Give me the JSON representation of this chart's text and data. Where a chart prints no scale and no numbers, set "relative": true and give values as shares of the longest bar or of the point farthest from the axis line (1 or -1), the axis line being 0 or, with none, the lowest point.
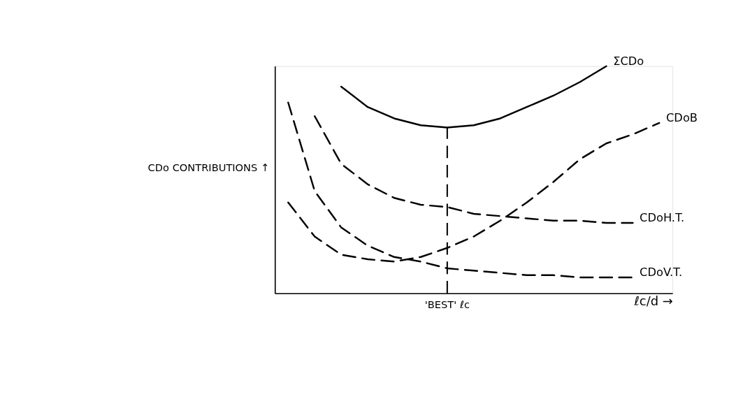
{
  "chart_data": {
    "type": "line",
    "relative": true,
    "xlabel": "ℓc/d →",
    "ylabel": "CDo CONTRIBUTIONS ↑",
    "categories": [
      null,
      null,
      null,
      null,
      null,
      null,
      null,
      null,
      null,
      null,
      null,
      null,
      null,
      null,
      null
    ],
    "series": [
      {
        "name": "ΣCDo",
        "color": "#000000",
        "line_style": "solid",
        "values": [
          null,
          null,
          0.91,
          0.82,
          0.77,
          0.74,
          0.73,
          0.74,
          0.77,
          0.82,
          0.87,
          0.93,
          1.0,
          null,
          null
        ]
      },
      {
        "name": "CDoB",
        "color": "#000000",
        "line_style": "dashed",
        "values": [
          0.4,
          0.25,
          0.17,
          0.15,
          0.14,
          0.16,
          0.2,
          0.25,
          0.32,
          0.4,
          0.49,
          0.59,
          0.66,
          0.7,
          0.75
        ]
      },
      {
        "name": "CDoH.T.",
        "color": "#000000",
        "line_style": "dashed",
        "values": [
          null,
          0.78,
          0.57,
          0.48,
          0.42,
          0.39,
          0.38,
          0.35,
          0.34,
          0.33,
          0.32,
          0.32,
          0.31,
          0.31,
          null
        ]
      },
      {
        "name": "CDoV.T.",
        "color": "#000000",
        "line_style": "dashed",
        "values": [
          0.84,
          0.45,
          0.29,
          0.21,
          0.16,
          0.14,
          0.11,
          0.1,
          0.09,
          0.08,
          0.08,
          0.07,
          0.07,
          0.07,
          null
        ]
      }
    ],
    "annotations": [
      "'BEST' ℓc"
    ],
    "grid": false,
    "tick_labels": false
  }
}
